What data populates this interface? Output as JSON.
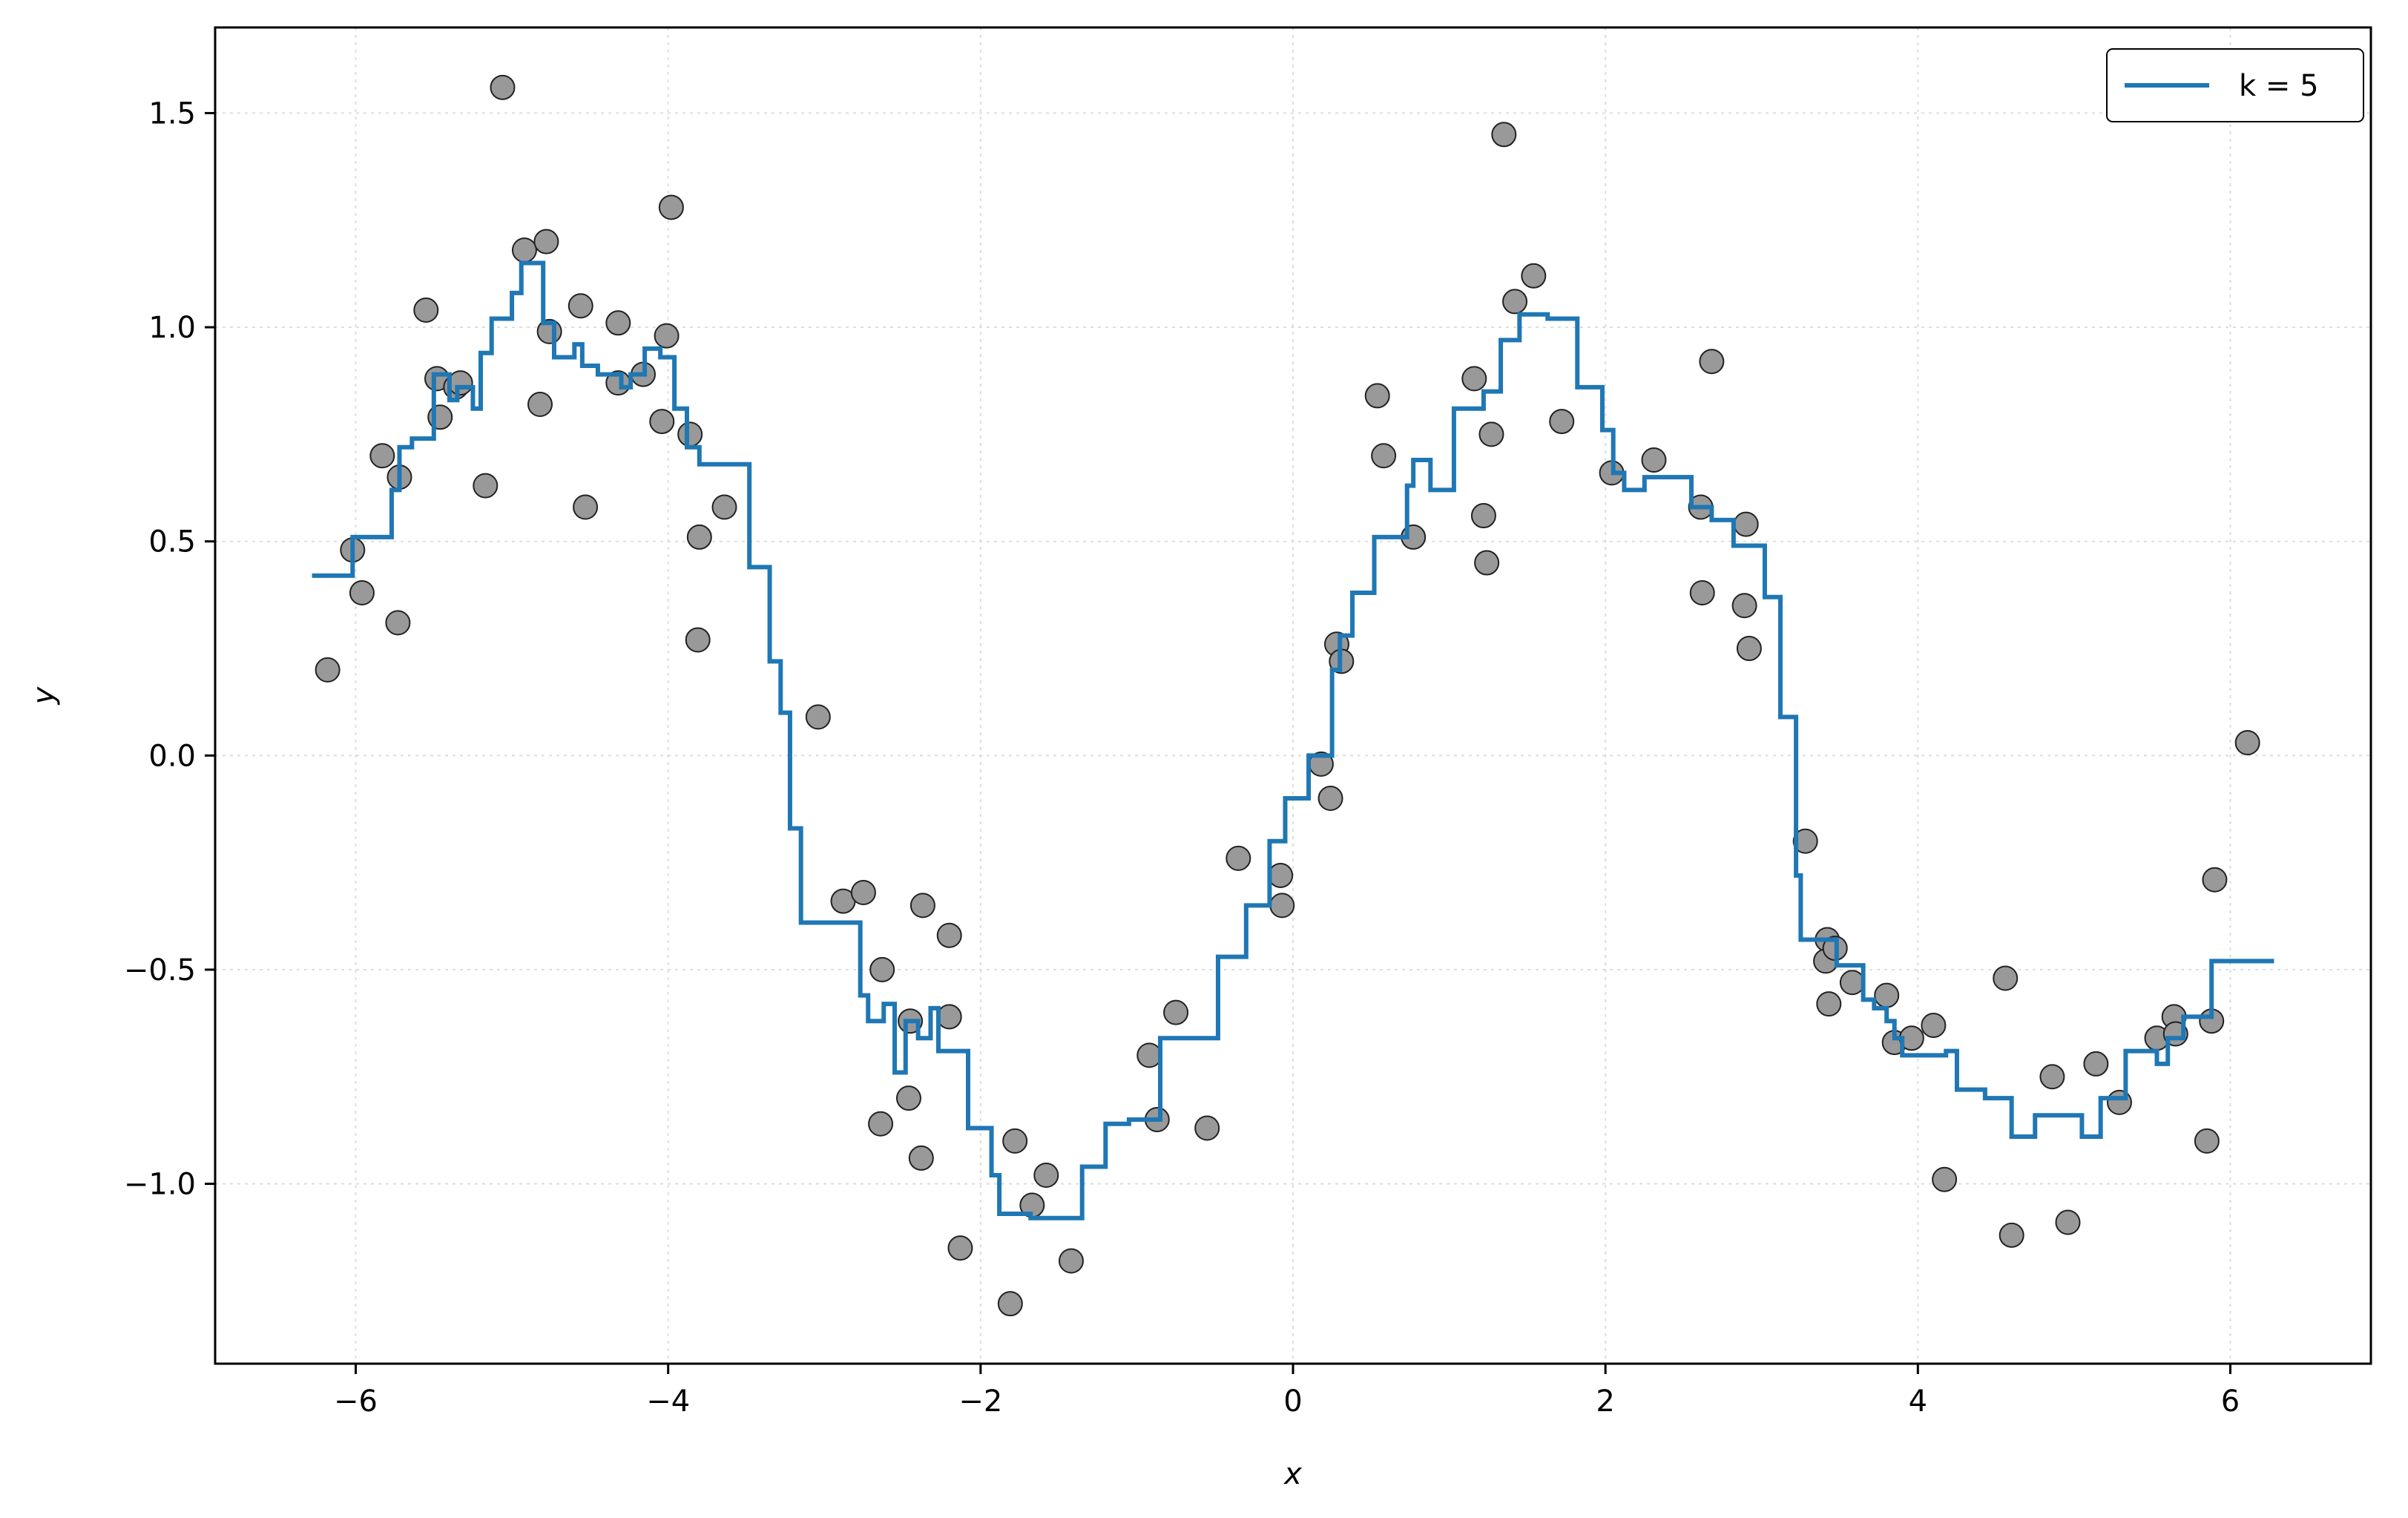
{
  "chart_data": {
    "type": "scatter",
    "title": "",
    "xlabel": "x",
    "ylabel": "y",
    "xlim": [
      -6.9,
      6.9
    ],
    "ylim": [
      -1.42,
      1.7
    ],
    "xticks": [
      -6,
      -4,
      -2,
      0,
      2,
      4,
      6
    ],
    "xtick_labels": [
      "−6",
      "−4",
      "−2",
      "0",
      "2",
      "4",
      "6"
    ],
    "yticks": [
      -1.0,
      -0.5,
      0.0,
      0.5,
      1.0,
      1.5
    ],
    "ytick_labels": [
      "−1.0",
      "−0.5",
      "0.0",
      "0.5",
      "1.0",
      "1.5"
    ],
    "grid": true,
    "legend_position": "top-right",
    "series": [
      {
        "name": "k = 5",
        "kind": "step-line",
        "color": "#1f77b4",
        "points": [
          [
            -6.28,
            0.42
          ],
          [
            -6.02,
            0.42
          ],
          [
            -6.02,
            0.51
          ],
          [
            -5.77,
            0.51
          ],
          [
            -5.77,
            0.62
          ],
          [
            -5.72,
            0.62
          ],
          [
            -5.72,
            0.72
          ],
          [
            -5.64,
            0.72
          ],
          [
            -5.64,
            0.74
          ],
          [
            -5.5,
            0.74
          ],
          [
            -5.5,
            0.89
          ],
          [
            -5.4,
            0.89
          ],
          [
            -5.4,
            0.83
          ],
          [
            -5.35,
            0.83
          ],
          [
            -5.35,
            0.86
          ],
          [
            -5.25,
            0.86
          ],
          [
            -5.25,
            0.81
          ],
          [
            -5.2,
            0.81
          ],
          [
            -5.2,
            0.94
          ],
          [
            -5.13,
            0.94
          ],
          [
            -5.13,
            1.02
          ],
          [
            -5.0,
            1.02
          ],
          [
            -5.0,
            1.08
          ],
          [
            -4.94,
            1.08
          ],
          [
            -4.94,
            1.15
          ],
          [
            -4.8,
            1.15
          ],
          [
            -4.8,
            1.01
          ],
          [
            -4.73,
            1.01
          ],
          [
            -4.73,
            0.93
          ],
          [
            -4.6,
            0.93
          ],
          [
            -4.6,
            0.96
          ],
          [
            -4.55,
            0.96
          ],
          [
            -4.55,
            0.91
          ],
          [
            -4.45,
            0.91
          ],
          [
            -4.45,
            0.89
          ],
          [
            -4.3,
            0.89
          ],
          [
            -4.3,
            0.86
          ],
          [
            -4.24,
            0.86
          ],
          [
            -4.24,
            0.89
          ],
          [
            -4.15,
            0.89
          ],
          [
            -4.15,
            0.95
          ],
          [
            -4.05,
            0.95
          ],
          [
            -4.05,
            0.93
          ],
          [
            -3.96,
            0.93
          ],
          [
            -3.96,
            0.81
          ],
          [
            -3.88,
            0.81
          ],
          [
            -3.88,
            0.72
          ],
          [
            -3.8,
            0.72
          ],
          [
            -3.8,
            0.68
          ],
          [
            -3.48,
            0.68
          ],
          [
            -3.48,
            0.44
          ],
          [
            -3.35,
            0.44
          ],
          [
            -3.35,
            0.22
          ],
          [
            -3.28,
            0.22
          ],
          [
            -3.28,
            0.1
          ],
          [
            -3.22,
            0.1
          ],
          [
            -3.22,
            -0.17
          ],
          [
            -3.15,
            -0.17
          ],
          [
            -3.15,
            -0.39
          ],
          [
            -2.77,
            -0.39
          ],
          [
            -2.77,
            -0.56
          ],
          [
            -2.72,
            -0.56
          ],
          [
            -2.72,
            -0.62
          ],
          [
            -2.62,
            -0.62
          ],
          [
            -2.62,
            -0.58
          ],
          [
            -2.55,
            -0.58
          ],
          [
            -2.55,
            -0.74
          ],
          [
            -2.48,
            -0.74
          ],
          [
            -2.48,
            -0.62
          ],
          [
            -2.4,
            -0.62
          ],
          [
            -2.4,
            -0.66
          ],
          [
            -2.32,
            -0.66
          ],
          [
            -2.32,
            -0.59
          ],
          [
            -2.27,
            -0.59
          ],
          [
            -2.27,
            -0.69
          ],
          [
            -2.08,
            -0.69
          ],
          [
            -2.08,
            -0.87
          ],
          [
            -1.93,
            -0.87
          ],
          [
            -1.93,
            -0.98
          ],
          [
            -1.88,
            -0.98
          ],
          [
            -1.88,
            -1.07
          ],
          [
            -1.68,
            -1.07
          ],
          [
            -1.68,
            -1.08
          ],
          [
            -1.35,
            -1.08
          ],
          [
            -1.35,
            -0.96
          ],
          [
            -1.2,
            -0.96
          ],
          [
            -1.2,
            -0.86
          ],
          [
            -1.05,
            -0.86
          ],
          [
            -1.05,
            -0.85
          ],
          [
            -0.85,
            -0.85
          ],
          [
            -0.85,
            -0.66
          ],
          [
            -0.48,
            -0.66
          ],
          [
            -0.48,
            -0.47
          ],
          [
            -0.3,
            -0.47
          ],
          [
            -0.3,
            -0.35
          ],
          [
            -0.15,
            -0.35
          ],
          [
            -0.15,
            -0.2
          ],
          [
            -0.05,
            -0.2
          ],
          [
            -0.05,
            -0.1
          ],
          [
            0.1,
            -0.1
          ],
          [
            0.1,
            0.0
          ],
          [
            0.25,
            0.0
          ],
          [
            0.25,
            0.2
          ],
          [
            0.3,
            0.2
          ],
          [
            0.3,
            0.28
          ],
          [
            0.38,
            0.28
          ],
          [
            0.38,
            0.38
          ],
          [
            0.52,
            0.38
          ],
          [
            0.52,
            0.51
          ],
          [
            0.73,
            0.51
          ],
          [
            0.73,
            0.63
          ],
          [
            0.77,
            0.63
          ],
          [
            0.77,
            0.69
          ],
          [
            0.88,
            0.69
          ],
          [
            0.88,
            0.62
          ],
          [
            1.03,
            0.62
          ],
          [
            1.03,
            0.81
          ],
          [
            1.22,
            0.81
          ],
          [
            1.22,
            0.85
          ],
          [
            1.33,
            0.85
          ],
          [
            1.33,
            0.97
          ],
          [
            1.45,
            0.97
          ],
          [
            1.45,
            1.03
          ],
          [
            1.63,
            1.03
          ],
          [
            1.63,
            1.02
          ],
          [
            1.82,
            1.02
          ],
          [
            1.82,
            0.86
          ],
          [
            1.98,
            0.86
          ],
          [
            1.98,
            0.76
          ],
          [
            2.05,
            0.76
          ],
          [
            2.05,
            0.66
          ],
          [
            2.12,
            0.66
          ],
          [
            2.12,
            0.62
          ],
          [
            2.25,
            0.62
          ],
          [
            2.25,
            0.65
          ],
          [
            2.55,
            0.65
          ],
          [
            2.55,
            0.58
          ],
          [
            2.68,
            0.58
          ],
          [
            2.68,
            0.55
          ],
          [
            2.82,
            0.55
          ],
          [
            2.82,
            0.49
          ],
          [
            3.02,
            0.49
          ],
          [
            3.02,
            0.37
          ],
          [
            3.12,
            0.37
          ],
          [
            3.12,
            0.09
          ],
          [
            3.22,
            0.09
          ],
          [
            3.22,
            -0.28
          ],
          [
            3.25,
            -0.28
          ],
          [
            3.25,
            -0.43
          ],
          [
            3.48,
            -0.43
          ],
          [
            3.48,
            -0.49
          ],
          [
            3.65,
            -0.49
          ],
          [
            3.65,
            -0.57
          ],
          [
            3.72,
            -0.57
          ],
          [
            3.72,
            -0.59
          ],
          [
            3.8,
            -0.59
          ],
          [
            3.8,
            -0.62
          ],
          [
            3.85,
            -0.62
          ],
          [
            3.85,
            -0.66
          ],
          [
            3.9,
            -0.66
          ],
          [
            3.9,
            -0.7
          ],
          [
            4.18,
            -0.7
          ],
          [
            4.18,
            -0.69
          ],
          [
            4.25,
            -0.69
          ],
          [
            4.25,
            -0.78
          ],
          [
            4.43,
            -0.78
          ],
          [
            4.43,
            -0.8
          ],
          [
            4.6,
            -0.8
          ],
          [
            4.6,
            -0.89
          ],
          [
            4.75,
            -0.89
          ],
          [
            4.75,
            -0.84
          ],
          [
            5.05,
            -0.84
          ],
          [
            5.05,
            -0.89
          ],
          [
            5.17,
            -0.89
          ],
          [
            5.17,
            -0.8
          ],
          [
            5.33,
            -0.8
          ],
          [
            5.33,
            -0.69
          ],
          [
            5.53,
            -0.69
          ],
          [
            5.53,
            -0.72
          ],
          [
            5.6,
            -0.72
          ],
          [
            5.6,
            -0.66
          ],
          [
            5.7,
            -0.66
          ],
          [
            5.7,
            -0.61
          ],
          [
            5.88,
            -0.61
          ],
          [
            5.88,
            -0.48
          ],
          [
            6.28,
            -0.48
          ]
        ]
      },
      {
        "name": "",
        "kind": "scatter",
        "color": "#999999",
        "edgecolor": "#222222",
        "points": [
          [
            -6.18,
            0.2
          ],
          [
            -6.02,
            0.48
          ],
          [
            -5.96,
            0.38
          ],
          [
            -5.83,
            0.7
          ],
          [
            -5.72,
            0.65
          ],
          [
            -5.73,
            0.31
          ],
          [
            -5.55,
            1.04
          ],
          [
            -5.48,
            0.88
          ],
          [
            -5.46,
            0.79
          ],
          [
            -5.36,
            0.86
          ],
          [
            -5.33,
            0.87
          ],
          [
            -5.17,
            0.63
          ],
          [
            -5.06,
            1.56
          ],
          [
            -4.92,
            1.18
          ],
          [
            -4.82,
            0.82
          ],
          [
            -4.78,
            1.2
          ],
          [
            -4.76,
            0.99
          ],
          [
            -4.56,
            1.05
          ],
          [
            -4.53,
            0.58
          ],
          [
            -4.32,
            1.01
          ],
          [
            -4.32,
            0.87
          ],
          [
            -4.16,
            0.89
          ],
          [
            -4.04,
            0.78
          ],
          [
            -4.01,
            0.98
          ],
          [
            -3.98,
            1.28
          ],
          [
            -3.86,
            0.75
          ],
          [
            -3.8,
            0.51
          ],
          [
            -3.81,
            0.27
          ],
          [
            -3.64,
            0.58
          ],
          [
            -3.04,
            0.09
          ],
          [
            -2.88,
            -0.34
          ],
          [
            -2.75,
            -0.32
          ],
          [
            -2.63,
            -0.5
          ],
          [
            -2.64,
            -0.86
          ],
          [
            -2.45,
            -0.62
          ],
          [
            -2.46,
            -0.8
          ],
          [
            -2.37,
            -0.35
          ],
          [
            -2.38,
            -0.94
          ],
          [
            -2.2,
            -0.42
          ],
          [
            -2.2,
            -0.61
          ],
          [
            -2.13,
            -1.15
          ],
          [
            -1.81,
            -1.28
          ],
          [
            -1.78,
            -0.9
          ],
          [
            -1.67,
            -1.05
          ],
          [
            -1.58,
            -0.98
          ],
          [
            -1.42,
            -1.18
          ],
          [
            -0.92,
            -0.7
          ],
          [
            -0.87,
            -0.85
          ],
          [
            -0.75,
            -0.6
          ],
          [
            -0.55,
            -0.87
          ],
          [
            -0.35,
            -0.24
          ],
          [
            -0.08,
            -0.28
          ],
          [
            -0.07,
            -0.35
          ],
          [
            0.18,
            -0.02
          ],
          [
            0.24,
            -0.1
          ],
          [
            0.28,
            0.26
          ],
          [
            0.31,
            0.22
          ],
          [
            0.54,
            0.84
          ],
          [
            0.58,
            0.7
          ],
          [
            0.77,
            0.51
          ],
          [
            1.16,
            0.88
          ],
          [
            1.22,
            0.56
          ],
          [
            1.24,
            0.45
          ],
          [
            1.27,
            0.75
          ],
          [
            1.35,
            1.45
          ],
          [
            1.42,
            1.06
          ],
          [
            1.54,
            1.12
          ],
          [
            1.72,
            0.78
          ],
          [
            2.04,
            0.66
          ],
          [
            2.31,
            0.69
          ],
          [
            2.61,
            0.58
          ],
          [
            2.62,
            0.38
          ],
          [
            2.68,
            0.92
          ],
          [
            2.89,
            0.35
          ],
          [
            2.9,
            0.54
          ],
          [
            2.92,
            0.25
          ],
          [
            3.28,
            -0.2
          ],
          [
            3.42,
            -0.43
          ],
          [
            3.41,
            -0.48
          ],
          [
            3.43,
            -0.58
          ],
          [
            3.47,
            -0.45
          ],
          [
            3.58,
            -0.53
          ],
          [
            3.8,
            -0.56
          ],
          [
            3.85,
            -0.67
          ],
          [
            3.96,
            -0.66
          ],
          [
            4.1,
            -0.63
          ],
          [
            4.17,
            -0.99
          ],
          [
            4.56,
            -0.52
          ],
          [
            4.6,
            -1.12
          ],
          [
            4.86,
            -0.75
          ],
          [
            4.96,
            -1.09
          ],
          [
            5.14,
            -0.72
          ],
          [
            5.29,
            -0.81
          ],
          [
            5.53,
            -0.66
          ],
          [
            5.64,
            -0.61
          ],
          [
            5.65,
            -0.65
          ],
          [
            5.85,
            -0.9
          ],
          [
            5.88,
            -0.62
          ],
          [
            5.9,
            -0.29
          ],
          [
            6.11,
            0.03
          ]
        ]
      }
    ]
  }
}
